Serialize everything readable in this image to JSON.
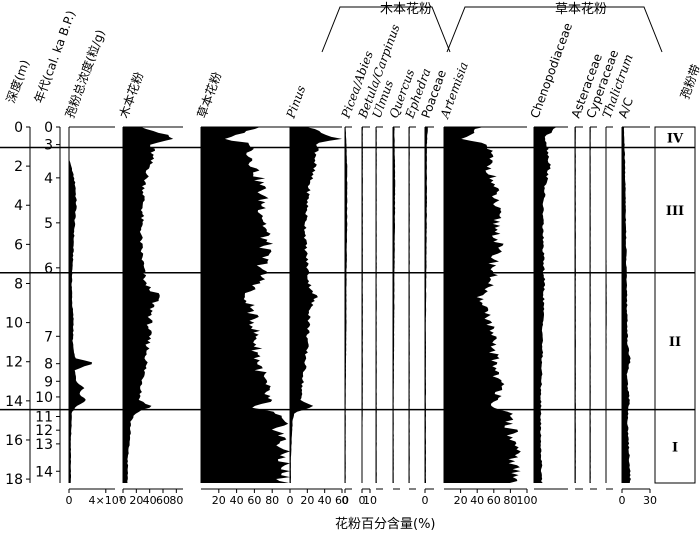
{
  "chart_data": {
    "type": "area",
    "title": "",
    "xlabel": "花粉百分含量(%)",
    "depth_axis": {
      "label": "深度(m)",
      "range": [
        0,
        18.2
      ],
      "ticks": [
        0,
        2,
        4,
        6,
        8,
        10,
        12,
        14,
        16,
        18
      ]
    },
    "age_axis": {
      "label": "年代(cal. ka B.P.)",
      "ticks": [
        {
          "age": "0",
          "depth": 0.0
        },
        {
          "age": "3",
          "depth": 0.9
        },
        {
          "age": "4",
          "depth": 2.6
        },
        {
          "age": "5",
          "depth": 4.9
        },
        {
          "age": "6",
          "depth": 7.2
        },
        {
          "age": "7",
          "depth": 10.7
        },
        {
          "age": "8",
          "depth": 12.1
        },
        {
          "age": "9",
          "depth": 13.0
        },
        {
          "age": "10",
          "depth": 13.8
        },
        {
          "age": "11",
          "depth": 14.8
        },
        {
          "age": "12",
          "depth": 15.5
        },
        {
          "age": "13",
          "depth": 16.2
        },
        {
          "age": "14",
          "depth": 17.6
        }
      ]
    },
    "group_labels": [
      "木本花粉",
      "草本花粉"
    ],
    "zones": [
      {
        "name": "IV",
        "top": 0.0,
        "bottom": 1.05
      },
      {
        "name": "III",
        "top": 1.05,
        "bottom": 7.45
      },
      {
        "name": "II",
        "top": 7.45,
        "bottom": 14.45
      },
      {
        "name": "I",
        "top": 14.45,
        "bottom": 18.2
      }
    ],
    "zone_header": "孢粉带",
    "series": [
      {
        "name": "孢粉总浓度(粒/g)",
        "italic": false,
        "xmax": 500000,
        "ticks": [
          {
            "v": 0,
            "t": "0"
          },
          {
            "v": 400000,
            "t": "4×10⁵"
          }
        ],
        "profile": [
          [
            0.0,
            0
          ],
          [
            1.0,
            0
          ],
          [
            1.6,
            0
          ],
          [
            2.3,
            40000
          ],
          [
            3.0,
            70000
          ],
          [
            4.0,
            80000
          ],
          [
            5.0,
            60000
          ],
          [
            6.0,
            50000
          ],
          [
            7.0,
            40000
          ],
          [
            8.0,
            30000
          ],
          [
            9.0,
            35000
          ],
          [
            10.0,
            50000
          ],
          [
            11.0,
            40000
          ],
          [
            11.8,
            60000
          ],
          [
            12.1,
            280000
          ],
          [
            12.4,
            60000
          ],
          [
            13.0,
            80000
          ],
          [
            13.3,
            160000
          ],
          [
            13.6,
            120000
          ],
          [
            14.0,
            190000
          ],
          [
            14.3,
            80000
          ],
          [
            14.6,
            30000
          ],
          [
            15.0,
            30000
          ],
          [
            16.0,
            20000
          ],
          [
            17.0,
            20000
          ],
          [
            18.0,
            20000
          ]
        ]
      },
      {
        "name": "木本花粉",
        "italic": false,
        "xmax": 90,
        "ticks": [
          {
            "v": 0,
            "t": "0"
          },
          {
            "v": 20,
            "t": "20"
          },
          {
            "v": 40,
            "t": "40"
          },
          {
            "v": 60,
            "t": "60"
          },
          {
            "v": 80,
            "t": "80"
          }
        ],
        "profile": [
          [
            0.0,
            30
          ],
          [
            0.3,
            55
          ],
          [
            0.6,
            75
          ],
          [
            0.9,
            40
          ],
          [
            1.2,
            45
          ],
          [
            2.0,
            40
          ],
          [
            3.0,
            32
          ],
          [
            4.0,
            30
          ],
          [
            5.0,
            28
          ],
          [
            6.0,
            27
          ],
          [
            7.0,
            30
          ],
          [
            8.0,
            33
          ],
          [
            8.7,
            55
          ],
          [
            9.0,
            45
          ],
          [
            10.0,
            40
          ],
          [
            11.0,
            38
          ],
          [
            12.0,
            35
          ],
          [
            13.0,
            30
          ],
          [
            14.0,
            25
          ],
          [
            14.3,
            45
          ],
          [
            14.6,
            20
          ],
          [
            15.0,
            12
          ],
          [
            16.0,
            10
          ],
          [
            17.0,
            7
          ],
          [
            18.0,
            7
          ]
        ]
      },
      {
        "name": "草本花粉",
        "italic": false,
        "xmax": 100,
        "ticks": [
          {
            "v": 20,
            "t": "20"
          },
          {
            "v": 40,
            "t": "40"
          },
          {
            "v": 60,
            "t": "60"
          },
          {
            "v": 80,
            "t": "80"
          }
        ],
        "profile": [
          [
            0.0,
            70
          ],
          [
            0.3,
            45
          ],
          [
            0.6,
            25
          ],
          [
            0.9,
            60
          ],
          [
            1.2,
            55
          ],
          [
            2.0,
            60
          ],
          [
            3.0,
            68
          ],
          [
            4.0,
            70
          ],
          [
            5.0,
            72
          ],
          [
            6.0,
            73
          ],
          [
            7.0,
            70
          ],
          [
            8.0,
            67
          ],
          [
            8.7,
            45
          ],
          [
            9.0,
            55
          ],
          [
            10.0,
            60
          ],
          [
            11.0,
            62
          ],
          [
            12.0,
            65
          ],
          [
            13.0,
            70
          ],
          [
            14.0,
            75
          ],
          [
            14.3,
            55
          ],
          [
            14.6,
            80
          ],
          [
            15.0,
            88
          ],
          [
            16.0,
            90
          ],
          [
            17.0,
            93
          ],
          [
            18.0,
            93
          ]
        ]
      },
      {
        "name": "Pinus",
        "italic": true,
        "xmax": 60,
        "ticks": [
          {
            "v": 0,
            "t": "0"
          },
          {
            "v": 20,
            "t": "20"
          },
          {
            "v": 40,
            "t": "40"
          },
          {
            "v": 60,
            "t": "60"
          }
        ],
        "profile": [
          [
            0.0,
            20
          ],
          [
            0.3,
            40
          ],
          [
            0.6,
            55
          ],
          [
            0.9,
            30
          ],
          [
            1.2,
            32
          ],
          [
            2.0,
            28
          ],
          [
            3.0,
            22
          ],
          [
            4.0,
            20
          ],
          [
            5.0,
            18
          ],
          [
            6.0,
            18
          ],
          [
            7.0,
            20
          ],
          [
            8.0,
            22
          ],
          [
            8.7,
            30
          ],
          [
            9.0,
            25
          ],
          [
            10.0,
            22
          ],
          [
            11.0,
            20
          ],
          [
            12.0,
            18
          ],
          [
            13.0,
            15
          ],
          [
            14.0,
            12
          ],
          [
            14.3,
            30
          ],
          [
            14.6,
            5
          ],
          [
            15.0,
            3
          ],
          [
            16.0,
            2
          ],
          [
            17.0,
            1
          ],
          [
            18.0,
            1
          ]
        ]
      },
      {
        "name": "Picea/Abies",
        "italic": true,
        "xmax": 10,
        "ticks": [
          {
            "v": 0,
            "t": "0"
          }
        ],
        "profile": [
          [
            0.0,
            1
          ],
          [
            2.0,
            3
          ],
          [
            5.0,
            3
          ],
          [
            8.0,
            2
          ],
          [
            10.0,
            2
          ],
          [
            14.0,
            1
          ],
          [
            18.0,
            1
          ]
        ]
      },
      {
        "name": "Betula/Carpinus",
        "italic": true,
        "xmax": 10,
        "ticks": [
          {
            "v": 0,
            "t": "0"
          },
          {
            "v": 10,
            "t": "10"
          }
        ],
        "profile": [
          [
            0.0,
            1
          ],
          [
            2.0,
            1
          ],
          [
            8.0,
            1
          ],
          [
            14.0,
            1
          ],
          [
            18.0,
            0
          ]
        ]
      },
      {
        "name": "Ulmus",
        "italic": true,
        "xmax": 10,
        "ticks": [],
        "profile": [
          [
            0.0,
            1
          ],
          [
            6.0,
            1
          ],
          [
            12.0,
            1
          ],
          [
            18.0,
            1
          ]
        ]
      },
      {
        "name": "Quercus",
        "italic": true,
        "xmax": 10,
        "ticks": [],
        "profile": [
          [
            0.0,
            2
          ],
          [
            3.0,
            3
          ],
          [
            8.0,
            2
          ],
          [
            14.0,
            1
          ],
          [
            18.0,
            1
          ]
        ]
      },
      {
        "name": "Ephedra",
        "italic": true,
        "xmax": 10,
        "ticks": [],
        "profile": [
          [
            0.0,
            1
          ],
          [
            4.0,
            1
          ],
          [
            10.0,
            1
          ],
          [
            18.0,
            1
          ]
        ]
      },
      {
        "name": "Poaceae",
        "italic": false,
        "xmax": 10,
        "ticks": [
          {
            "v": 0,
            "t": "0"
          }
        ],
        "profile": [
          [
            0.0,
            3
          ],
          [
            1.0,
            2
          ],
          [
            4.0,
            2
          ],
          [
            10.0,
            1
          ],
          [
            18.0,
            1
          ]
        ]
      },
      {
        "name": "Artemisia",
        "italic": true,
        "xmax": 100,
        "ticks": [
          {
            "v": 20,
            "t": "20"
          },
          {
            "v": 40,
            "t": "40"
          },
          {
            "v": 60,
            "t": "60"
          },
          {
            "v": 80,
            "t": "80"
          },
          {
            "v": 100,
            "t": "100"
          }
        ],
        "profile": [
          [
            0.0,
            45
          ],
          [
            0.3,
            35
          ],
          [
            0.6,
            20
          ],
          [
            0.9,
            50
          ],
          [
            1.2,
            55
          ],
          [
            2.0,
            55
          ],
          [
            3.0,
            60
          ],
          [
            4.0,
            62
          ],
          [
            5.0,
            64
          ],
          [
            6.0,
            65
          ],
          [
            7.0,
            60
          ],
          [
            8.0,
            58
          ],
          [
            8.7,
            40
          ],
          [
            9.0,
            50
          ],
          [
            10.0,
            55
          ],
          [
            11.0,
            58
          ],
          [
            12.0,
            62
          ],
          [
            13.0,
            66
          ],
          [
            14.0,
            70
          ],
          [
            14.3,
            50
          ],
          [
            14.6,
            75
          ],
          [
            15.0,
            80
          ],
          [
            16.0,
            82
          ],
          [
            17.0,
            85
          ],
          [
            18.0,
            85
          ]
        ]
      },
      {
        "name": "Chenopodiaceae",
        "italic": false,
        "xmax": 30,
        "ticks": [],
        "profile": [
          [
            0.0,
            20
          ],
          [
            0.5,
            10
          ],
          [
            1.0,
            12
          ],
          [
            2.0,
            14
          ],
          [
            3.0,
            10
          ],
          [
            4.0,
            8
          ],
          [
            6.0,
            8
          ],
          [
            8.0,
            9
          ],
          [
            10.0,
            8
          ],
          [
            12.0,
            7
          ],
          [
            14.0,
            6
          ],
          [
            16.0,
            6
          ],
          [
            18.0,
            7
          ]
        ]
      },
      {
        "name": "Asteraceae",
        "italic": false,
        "xmax": 10,
        "ticks": [],
        "profile": [
          [
            0.0,
            1
          ],
          [
            5.0,
            1
          ],
          [
            10.0,
            1
          ],
          [
            18.0,
            1
          ]
        ]
      },
      {
        "name": "Cyperaceae",
        "italic": false,
        "xmax": 10,
        "ticks": [],
        "profile": [
          [
            0.0,
            1
          ],
          [
            5.0,
            1
          ],
          [
            10.0,
            1
          ],
          [
            18.0,
            1
          ]
        ]
      },
      {
        "name": "Thalictrum",
        "italic": true,
        "xmax": 10,
        "ticks": [],
        "profile": [
          [
            0.0,
            0
          ],
          [
            9.0,
            1
          ],
          [
            18.0,
            0
          ]
        ]
      },
      {
        "name": "A/C",
        "italic": false,
        "xmax": 30,
        "ticks": [
          {
            "v": 0,
            "t": "0"
          },
          {
            "v": 30,
            "t": "30"
          }
        ],
        "profile": [
          [
            0.0,
            2
          ],
          [
            1.5,
            3
          ],
          [
            4.0,
            4
          ],
          [
            8.0,
            5
          ],
          [
            11.0,
            6
          ],
          [
            12.0,
            9
          ],
          [
            12.6,
            5
          ],
          [
            14.0,
            8
          ],
          [
            15.0,
            6
          ],
          [
            16.0,
            7
          ],
          [
            17.0,
            8
          ],
          [
            18.0,
            9
          ]
        ]
      }
    ]
  }
}
